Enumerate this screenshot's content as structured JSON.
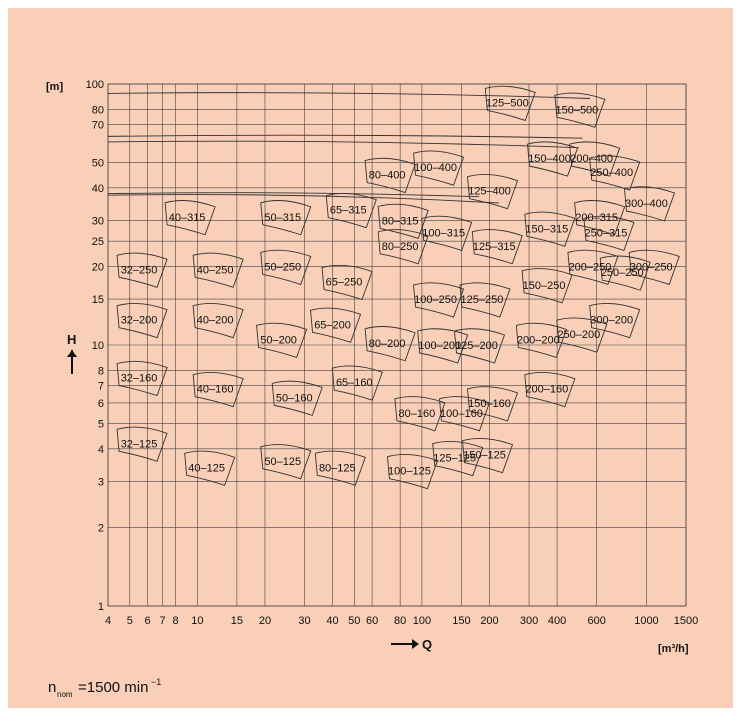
{
  "chart_data": {
    "type": "area",
    "title": "",
    "xlabel": "Q",
    "ylabel": "H",
    "x_unit": "[m³/h]",
    "y_unit": "[m]",
    "x_scale": "log",
    "y_scale": "log",
    "xlim": [
      4,
      1500
    ],
    "ylim": [
      1,
      100
    ],
    "grid": true,
    "x_ticks": [
      4,
      5,
      6,
      7,
      8,
      10,
      15,
      20,
      30,
      40,
      50,
      60,
      80,
      100,
      150,
      200,
      300,
      400,
      600,
      1000,
      1500
    ],
    "y_ticks": [
      1,
      2,
      3,
      4,
      5,
      6,
      7,
      8,
      10,
      15,
      20,
      25,
      30,
      40,
      50,
      70,
      80,
      100
    ],
    "series": [
      {
        "name": "32–125",
        "x": 5.5,
        "y": 4.2
      },
      {
        "name": "40–125",
        "x": 11,
        "y": 3.4
      },
      {
        "name": "50–125",
        "x": 24,
        "y": 3.6
      },
      {
        "name": "32–160",
        "x": 5.5,
        "y": 7.5
      },
      {
        "name": "40–160",
        "x": 12,
        "y": 6.8
      },
      {
        "name": "50–160",
        "x": 27,
        "y": 6.3
      },
      {
        "name": "65–160",
        "x": 50,
        "y": 7.2
      },
      {
        "name": "32–200",
        "x": 5.5,
        "y": 12.5
      },
      {
        "name": "40–200",
        "x": 12,
        "y": 12.5
      },
      {
        "name": "50–200",
        "x": 23,
        "y": 10.5
      },
      {
        "name": "65–200",
        "x": 40,
        "y": 12
      },
      {
        "name": "80–200",
        "x": 70,
        "y": 10.2
      },
      {
        "name": "32–250",
        "x": 5.5,
        "y": 19.5
      },
      {
        "name": "40–250",
        "x": 12,
        "y": 19.5
      },
      {
        "name": "50–250",
        "x": 24,
        "y": 20
      },
      {
        "name": "65–250",
        "x": 45,
        "y": 17.5
      },
      {
        "name": "80–250",
        "x": 80,
        "y": 24
      },
      {
        "name": "40–315",
        "x": 9,
        "y": 31
      },
      {
        "name": "50–315",
        "x": 24,
        "y": 31
      },
      {
        "name": "65–315",
        "x": 47,
        "y": 33
      },
      {
        "name": "80–315",
        "x": 80,
        "y": 30
      },
      {
        "name": "80–400",
        "x": 70,
        "y": 45
      },
      {
        "name": "100–400",
        "x": 115,
        "y": 48
      },
      {
        "name": "100–315",
        "x": 125,
        "y": 27
      },
      {
        "name": "100–250",
        "x": 115,
        "y": 15
      },
      {
        "name": "100–200",
        "x": 120,
        "y": 10
      },
      {
        "name": "80–160",
        "x": 95,
        "y": 5.5
      },
      {
        "name": "100–160",
        "x": 150,
        "y": 5.5
      },
      {
        "name": "80–125",
        "x": 42,
        "y": 3.4
      },
      {
        "name": "100–125",
        "x": 88,
        "y": 3.3
      },
      {
        "name": "125–125",
        "x": 140,
        "y": 3.7
      },
      {
        "name": "150–125",
        "x": 190,
        "y": 3.8
      },
      {
        "name": "125–500",
        "x": 240,
        "y": 85
      },
      {
        "name": "150–500",
        "x": 490,
        "y": 80
      },
      {
        "name": "125–400",
        "x": 200,
        "y": 39
      },
      {
        "name": "125–315",
        "x": 210,
        "y": 24
      },
      {
        "name": "125–250",
        "x": 185,
        "y": 15
      },
      {
        "name": "125–200",
        "x": 175,
        "y": 10
      },
      {
        "name": "150–160",
        "x": 200,
        "y": 6
      },
      {
        "name": "150–400",
        "x": 370,
        "y": 52
      },
      {
        "name": "150–315",
        "x": 360,
        "y": 28
      },
      {
        "name": "150–250",
        "x": 350,
        "y": 17
      },
      {
        "name": "200–200",
        "x": 330,
        "y": 10.5
      },
      {
        "name": "200–160",
        "x": 360,
        "y": 6.8
      },
      {
        "name": "200–400",
        "x": 570,
        "y": 52
      },
      {
        "name": "250–400",
        "x": 700,
        "y": 46
      },
      {
        "name": "200–315",
        "x": 600,
        "y": 31
      },
      {
        "name": "250–315",
        "x": 660,
        "y": 27
      },
      {
        "name": "200–250",
        "x": 560,
        "y": 20
      },
      {
        "name": "250–250",
        "x": 780,
        "y": 19
      },
      {
        "name": "250–200",
        "x": 500,
        "y": 11
      },
      {
        "name": "300–200",
        "x": 700,
        "y": 12.5
      },
      {
        "name": "300–400",
        "x": 1000,
        "y": 35
      },
      {
        "name": "300–250",
        "x": 1050,
        "y": 20
      }
    ]
  },
  "labels": {
    "y_unit": "[m]",
    "x_unit": "[m³/h]",
    "x_axis_name": "Q",
    "y_axis_name": "H",
    "footnote_n": "n",
    "footnote_sub": "nom",
    "footnote_value": "=1500 min",
    "footnote_sup": "−1"
  },
  "colors": {
    "background": "#f9cfb7",
    "line": "#333333",
    "grid": "#444444"
  }
}
